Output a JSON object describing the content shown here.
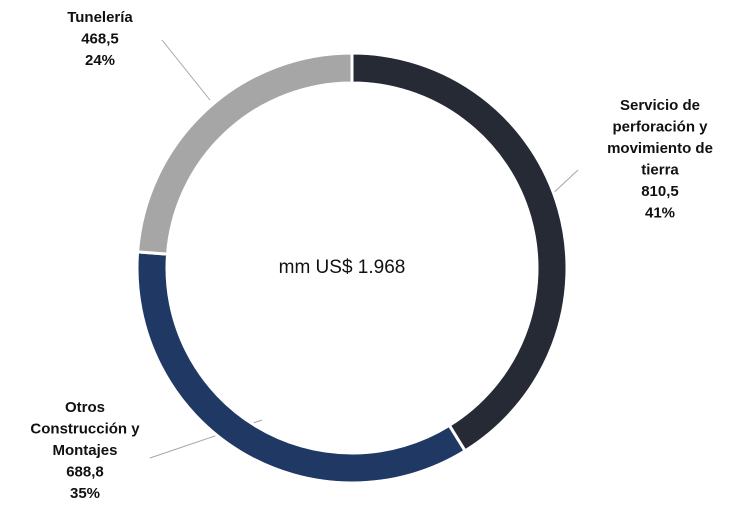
{
  "chart_data": {
    "type": "donut",
    "center_label": "mm US$ 1.968",
    "categories": [
      [
        "Servicio de",
        "perforación y",
        "movimiento de",
        "tierra"
      ],
      [
        "Otros",
        "Construcción y",
        "Montajes"
      ],
      [
        "Tunelería"
      ]
    ],
    "values": [
      810.5,
      688.8,
      468.5
    ],
    "value_labels": [
      "810,5",
      "688,8",
      "468,5"
    ],
    "percentages": [
      41,
      35,
      24
    ],
    "percentage_labels": [
      "41%",
      "35%",
      "24%"
    ],
    "colors": [
      "#252a35",
      "#1f3864",
      "#a6a6a6"
    ]
  }
}
